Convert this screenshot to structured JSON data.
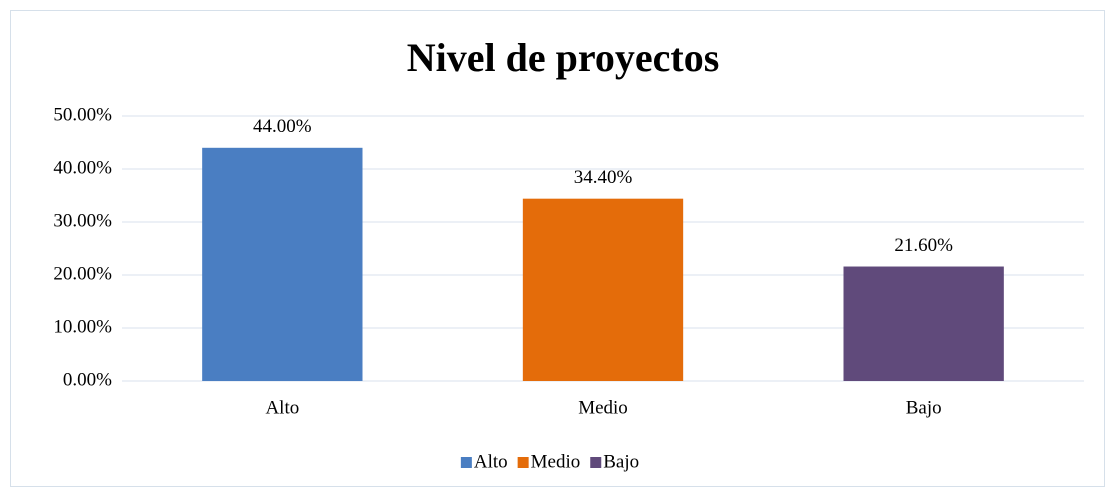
{
  "chart_data": {
    "type": "bar",
    "title": "Nivel de proyectos",
    "categories": [
      "Alto",
      "Medio",
      "Bajo"
    ],
    "values": [
      44,
      34.4,
      21.6
    ],
    "value_labels": [
      "44.00%",
      "34.40%",
      "21.60%"
    ],
    "colors": [
      "#4a7ec2",
      "#e46c0a",
      "#604a7b"
    ],
    "ylim": [
      0,
      50
    ],
    "yticks": [
      {
        "value": 0,
        "label": "0.00%"
      },
      {
        "value": 10,
        "label": "10.00%"
      },
      {
        "value": 20,
        "label": "20.00%"
      },
      {
        "value": 30,
        "label": "30.00%"
      },
      {
        "value": 40,
        "label": "40.00%"
      },
      {
        "value": 50,
        "label": "50.00%"
      }
    ],
    "grid": true,
    "legend": "bottom"
  }
}
